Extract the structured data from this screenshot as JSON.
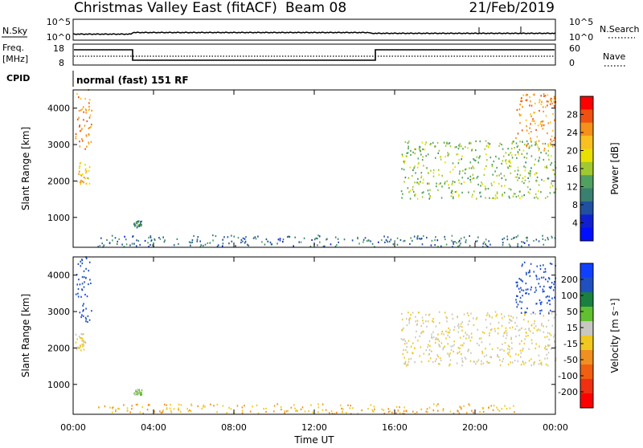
{
  "header": {
    "title": "Christmas Valley East (fitACF)",
    "beam": "Beam 08",
    "date": "21/Feb/2019"
  },
  "param_panels": {
    "nsky_label": "N.Sky",
    "nsky_ticks": [
      "10^5",
      "10^0"
    ],
    "nsearch_label": "N.Search",
    "nsearch_ticks": [
      "10^5",
      "10^0"
    ],
    "freq_label": "Freq.",
    "freq_unit": "[MHz]",
    "freq_ticks": [
      "18",
      "8"
    ],
    "nave_label": "Nave",
    "nave_ticks": [
      "60",
      "0"
    ],
    "cpid_label": "CPID",
    "cpid_text": "normal (fast) 151 RF"
  },
  "range_time": {
    "ylabel": "Slant Range [km]",
    "yticks": [
      "4000",
      "3000",
      "2000",
      "1000"
    ],
    "xlabel": "Time UT",
    "xticks": [
      "00:00",
      "04:00",
      "08:00",
      "12:00",
      "16:00",
      "20:00",
      "00:00"
    ]
  },
  "power_colorbar": {
    "label": "Power [dB]",
    "ticks": [
      "28",
      "24",
      "20",
      "16",
      "12",
      "8",
      "4"
    ],
    "colors": [
      "#ff0000",
      "#f05010",
      "#f59018",
      "#f8c020",
      "#e8e000",
      "#a0c830",
      "#50a060",
      "#3a8070",
      "#2050a0",
      "#1020d0",
      "#0010ff"
    ]
  },
  "velocity_colorbar": {
    "label": "Velocity [m s⁻¹]",
    "ticks": [
      "200",
      "100",
      "50",
      "15",
      "-15",
      "-50",
      "-100",
      "-200"
    ],
    "colors": [
      "#1040ff",
      "#2050c0",
      "#1a8040",
      "#60c030",
      "#c8c8c0",
      "#f0c820",
      "#f09020",
      "#f06010",
      "#f03010",
      "#ff0000"
    ]
  },
  "chart_data": [
    {
      "type": "heatmap",
      "title": "Power",
      "xlabel": "Time UT",
      "ylabel": "Slant Range [km]",
      "xlim": [
        "00:00",
        "24:00"
      ],
      "ylim": [
        180,
        4500
      ],
      "colorbar": {
        "label": "Power [dB]",
        "range": [
          0,
          30
        ]
      },
      "regions": [
        {
          "t0": 0.1,
          "t1": 0.9,
          "r0": 2700,
          "r1": 4500,
          "value": 24
        },
        {
          "t0": 0.1,
          "t1": 0.8,
          "r0": 1900,
          "r1": 2500,
          "value": 20
        },
        {
          "t0": 1.2,
          "t1": 24.0,
          "r0": 180,
          "r1": 500,
          "value": 8
        },
        {
          "t0": 3.0,
          "t1": 3.4,
          "r0": 700,
          "r1": 900,
          "value": 10
        },
        {
          "t0": 16.3,
          "t1": 24.0,
          "r0": 1500,
          "r1": 3100,
          "value": 14
        },
        {
          "t0": 22.0,
          "t1": 24.0,
          "r0": 2800,
          "r1": 4400,
          "value": 24
        }
      ]
    },
    {
      "type": "heatmap",
      "title": "Velocity",
      "xlabel": "Time UT",
      "ylabel": "Slant Range [km]",
      "xlim": [
        "00:00",
        "24:00"
      ],
      "ylim": [
        180,
        4500
      ],
      "colorbar": {
        "label": "Velocity [m s⁻¹]",
        "range": [
          -250,
          250
        ]
      },
      "regions": [
        {
          "t0": 0.1,
          "t1": 0.9,
          "r0": 2700,
          "r1": 4500,
          "value": 200
        },
        {
          "t0": 0.1,
          "t1": 0.6,
          "r0": 1900,
          "r1": 2400,
          "value": 0
        },
        {
          "t0": 1.2,
          "t1": 22.0,
          "r0": 180,
          "r1": 450,
          "value": -50
        },
        {
          "t0": 3.0,
          "t1": 3.4,
          "r0": 700,
          "r1": 850,
          "value": 60
        },
        {
          "t0": 16.3,
          "t1": 24.0,
          "r0": 1500,
          "r1": 3000,
          "value": 0
        },
        {
          "t0": 22.0,
          "t1": 24.0,
          "r0": 2900,
          "r1": 4400,
          "value": 200
        }
      ]
    }
  ]
}
